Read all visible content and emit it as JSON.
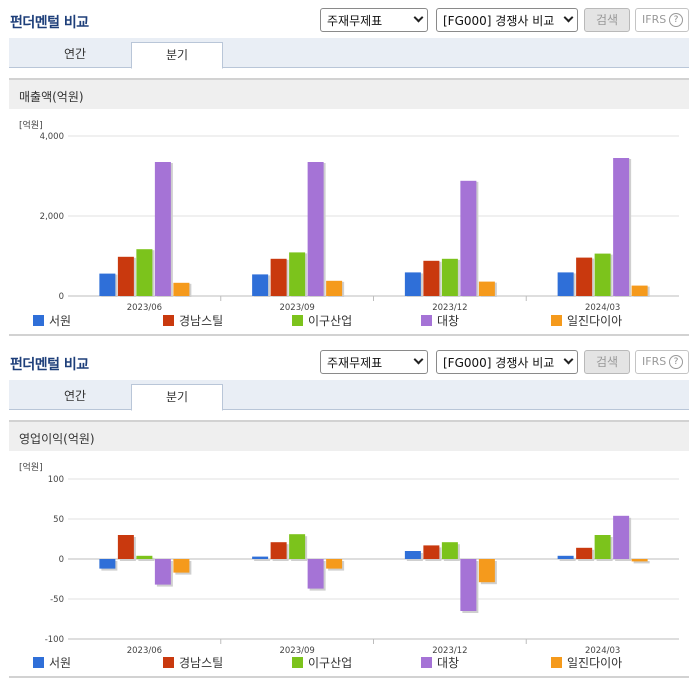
{
  "colors": {
    "서원": "#2f6fd8",
    "경남스틸": "#c9390e",
    "이구산업": "#7cc31c",
    "대창": "#a573d6",
    "일진다이아": "#f59a1c"
  },
  "panels": [
    {
      "title": "펀더멘털 비교",
      "select_statement": "주재무제표",
      "select_compare": "[FG000] 경쟁사 비교",
      "search_label": "검색",
      "ifrs_label": "IFRS",
      "ifrs_help": "?",
      "tabs": [
        "연간",
        "분기"
      ],
      "active_tab": "분기",
      "subtitle": "매출액(억원)",
      "unit": "[억원]"
    },
    {
      "title": "펀더멘털 비교",
      "select_statement": "주재무제표",
      "select_compare": "[FG000] 경쟁사 비교",
      "search_label": "검색",
      "ifrs_label": "IFRS",
      "ifrs_help": "?",
      "tabs": [
        "연간",
        "분기"
      ],
      "active_tab": "분기",
      "subtitle": "영업이익(억원)",
      "unit": "[억원]"
    }
  ],
  "chart_data": [
    {
      "type": "bar",
      "title": "매출액(억원)",
      "ylabel": "[억원]",
      "categories": [
        "2023/06",
        "2023/09",
        "2023/12",
        "2024/03"
      ],
      "ylim": [
        0,
        4000
      ],
      "yticks": [
        0,
        2000,
        4000
      ],
      "ytick_labels": [
        "0",
        "2,000",
        "4,000"
      ],
      "grid": true,
      "legend": "bottom",
      "series": [
        {
          "name": "서원",
          "values": [
            560,
            540,
            590,
            590
          ]
        },
        {
          "name": "경남스틸",
          "values": [
            980,
            930,
            880,
            960
          ]
        },
        {
          "name": "이구산업",
          "values": [
            1170,
            1090,
            930,
            1060
          ]
        },
        {
          "name": "대창",
          "values": [
            3350,
            3350,
            2880,
            3450
          ]
        },
        {
          "name": "일진다이아",
          "values": [
            330,
            380,
            360,
            260
          ]
        }
      ]
    },
    {
      "type": "bar",
      "title": "영업이익(억원)",
      "ylabel": "[억원]",
      "categories": [
        "2023/06",
        "2023/09",
        "2023/12",
        "2024/03"
      ],
      "ylim": [
        -100,
        100
      ],
      "yticks": [
        -100,
        -50,
        0,
        50,
        100
      ],
      "ytick_labels": [
        "-100",
        "-50",
        "0",
        "50",
        "100"
      ],
      "grid": true,
      "legend": "bottom",
      "series": [
        {
          "name": "서원",
          "values": [
            -12,
            3,
            10,
            4
          ]
        },
        {
          "name": "경남스틸",
          "values": [
            30,
            21,
            17,
            14
          ]
        },
        {
          "name": "이구산업",
          "values": [
            4,
            31,
            21,
            30
          ]
        },
        {
          "name": "대창",
          "values": [
            -32,
            -37,
            -65,
            54
          ]
        },
        {
          "name": "일진다이아",
          "values": [
            -17,
            -12,
            -29,
            -3
          ]
        }
      ]
    }
  ]
}
